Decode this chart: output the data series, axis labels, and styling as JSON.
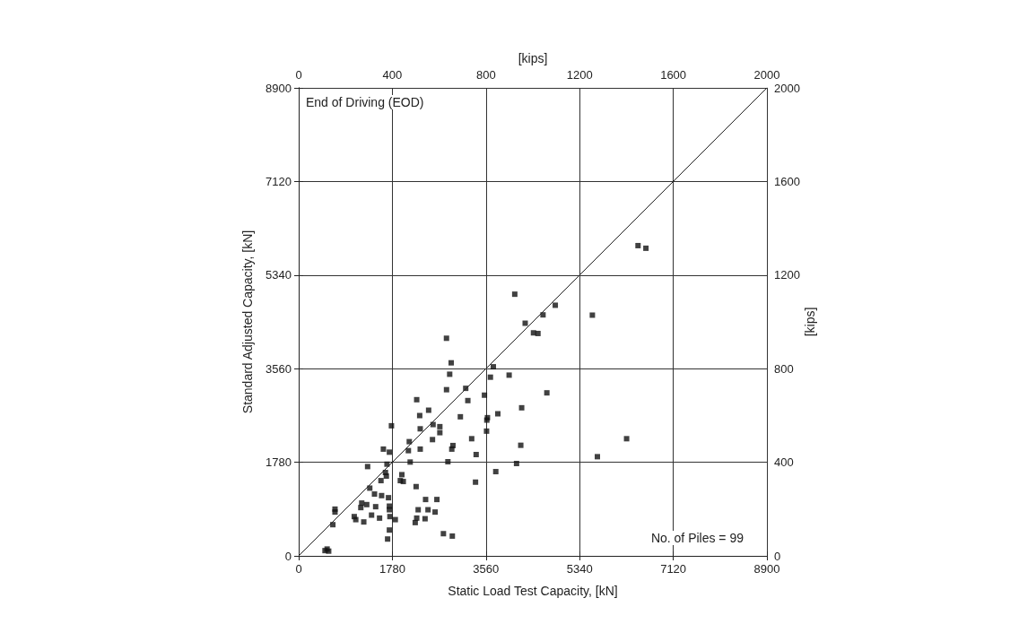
{
  "chart_data": {
    "type": "scatter",
    "xlabel": "Static Load Test Capacity, [kN]",
    "ylabel": "Standard Adjusted Capacity, [kN]",
    "x2label": "[kips]",
    "y2label": "[kips]",
    "annotations": [
      "End of Driving (EOD)",
      "No. of Piles = 99"
    ],
    "xlim": [
      0,
      8900
    ],
    "xticks": [
      0,
      1780,
      3560,
      5340,
      7120,
      8900
    ],
    "ylim": [
      0,
      8900
    ],
    "yticks": [
      0,
      1780,
      3560,
      5340,
      7120,
      8900
    ],
    "x2lim": [
      0,
      2000
    ],
    "x2ticks": [
      0,
      400,
      800,
      1200,
      1600,
      2000
    ],
    "y2lim": [
      0,
      2000
    ],
    "y2ticks": [
      0,
      400,
      800,
      1200,
      1600,
      2000
    ],
    "grid": true,
    "marker": "square",
    "series": [
      {
        "type": "scatter",
        "color": "#111111",
        "x": [
          2810,
          3175,
          2243,
          3215,
          2470,
          2300,
          3073,
          1763,
          2554,
          2683,
          2310,
          2683,
          3288,
          2543,
          2102,
          2932,
          2910,
          2310,
          1610,
          2085,
          1724,
          3373,
          2119,
          2836,
          1310,
          1678,
          1649,
          1666,
          1961,
          1932,
          1564,
          1988,
          3361,
          2232,
          1351,
          1441,
          1576,
          1707,
          2412,
          2627,
          1198,
          1293,
          1463,
          1724,
          1181,
          690,
          690,
          1724,
          2271,
          2458,
          2593,
          1385,
          1056,
          1085,
          1537,
          1734,
          1836,
          2243,
          2215,
          2402,
          1237,
          649,
          1724,
          2751,
          2920,
          1690,
          500,
          540,
          570,
          4463,
          4548,
          3700,
          3644,
          4000,
          4717,
          3531,
          3588,
          3576,
          3785,
          4238,
          3571,
          4221,
          4141,
          3746,
          5678,
          6233,
          4107,
          4877,
          4644,
          4305,
          5582,
          2809,
          2898,
          2870,
          6450,
          6600
        ],
        "values": [
          3160,
          3186,
          2970,
          2953,
          2770,
          2668,
          2645,
          2474,
          2497,
          2457,
          2416,
          2343,
          2228,
          2211,
          2172,
          2098,
          2030,
          2030,
          2030,
          2001,
          1972,
          1927,
          1784,
          1790,
          1698,
          1744,
          1585,
          1517,
          1544,
          1431,
          1431,
          1414,
          1402,
          1317,
          1288,
          1175,
          1146,
          1106,
          1072,
          1072,
          1004,
          975,
          935,
          946,
          918,
          889,
          833,
          877,
          877,
          877,
          833,
          775,
          747,
          689,
          718,
          747,
          689,
          718,
          633,
          706,
          645,
          593,
          491,
          422,
          376,
          320,
          100,
          130,
          90,
          4241,
          4229,
          3596,
          3398,
          3437,
          3100,
          3056,
          2628,
          2582,
          2702,
          2816,
          2372,
          2103,
          1756,
          1602,
          1886,
          2228,
          4976,
          4766,
          4583,
          4424,
          4578,
          4138,
          3671,
          3454,
          5900,
          5850
        ]
      },
      {
        "type": "line",
        "color": "#222222",
        "marker": "none",
        "x": [
          0,
          8900
        ],
        "values": [
          0,
          8900
        ]
      }
    ]
  }
}
